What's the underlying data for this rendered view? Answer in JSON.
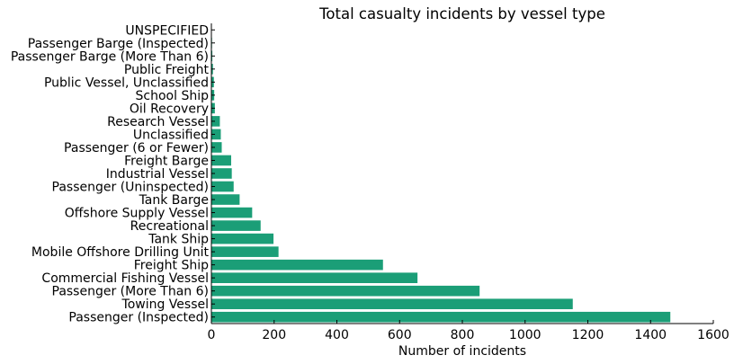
{
  "chart_data": {
    "type": "bar",
    "orientation": "horizontal",
    "title": "Total casualty incidents by vessel type",
    "xlabel": "Number of incidents",
    "ylabel": "",
    "xlim": [
      0,
      1600
    ],
    "xticks": [
      "0",
      "200",
      "400",
      "600",
      "800",
      "1000",
      "1200",
      "1400",
      "1600"
    ],
    "grid": false,
    "bar_color": "#1b9e77",
    "categories": [
      "UNSPECIFIED",
      "Passenger Barge  (Inspected)",
      "Passenger Barge  (More Than 6)",
      "Public Freight",
      "Public Vessel, Unclassified",
      "School Ship",
      "Oil Recovery",
      "Research Vessel",
      "Unclassified",
      "Passenger (6 or Fewer)",
      "Freight Barge",
      "Industrial Vessel",
      "Passenger (Uninspected)",
      "Tank Barge",
      "Offshore Supply Vessel",
      "Recreational",
      "Tank Ship",
      "Mobile Offshore Drilling Unit",
      "Freight Ship",
      "Commercial Fishing Vessel",
      "Passenger (More Than 6)",
      "Towing Vessel",
      "Passenger (Inspected)"
    ],
    "values": [
      1,
      2,
      3,
      5,
      8,
      9,
      11,
      27,
      30,
      33,
      63,
      65,
      71,
      90,
      130,
      157,
      198,
      214,
      547,
      657,
      855,
      1152,
      1463
    ]
  }
}
